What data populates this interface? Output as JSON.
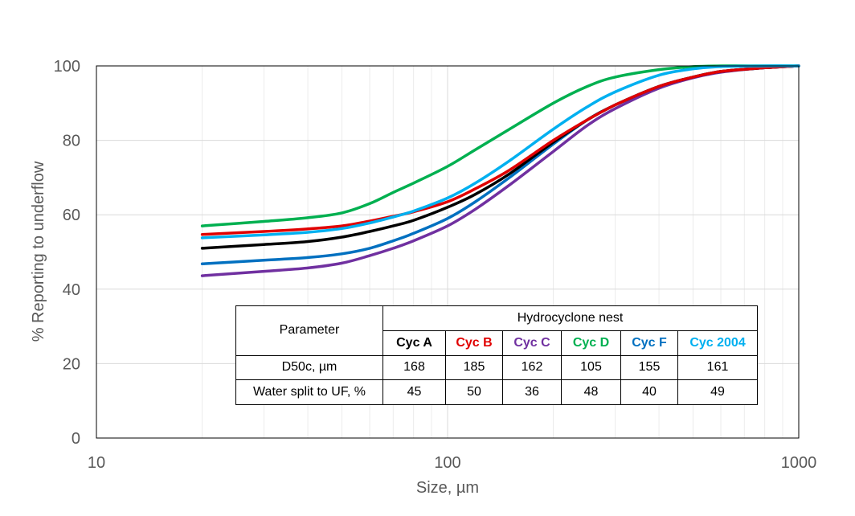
{
  "chart_data": {
    "type": "line",
    "xlabel": "Size, µm",
    "ylabel": "% Reporting to underflow",
    "x_scale": "log",
    "xlim": [
      10,
      1000
    ],
    "ylim": [
      0,
      100
    ],
    "x_ticks": [
      "10",
      "100",
      "1000"
    ],
    "y_ticks": [
      "0",
      "20",
      "40",
      "60",
      "80",
      "100"
    ],
    "grid": true,
    "series": [
      {
        "color": "#00b050",
        "x": [
          20,
          30,
          40,
          50,
          60,
          70,
          80,
          100,
          120,
          150,
          200,
          250,
          300,
          400,
          500,
          600,
          800,
          1000
        ],
        "values": [
          57,
          58.2,
          59.2,
          60.5,
          63,
          66,
          68.5,
          73,
          77.5,
          83,
          90,
          94.5,
          97,
          99,
          99.8,
          100,
          100,
          100
        ]
      },
      {
        "color": "#0070c0",
        "x": [
          20,
          30,
          40,
          50,
          60,
          70,
          80,
          100,
          120,
          150,
          200,
          250,
          300,
          400,
          500,
          600,
          800,
          1000
        ],
        "values": [
          46.8,
          47.8,
          48.5,
          49.5,
          51,
          53,
          55,
          59,
          63.5,
          70,
          79,
          85.5,
          89.5,
          94.5,
          97,
          98.5,
          99.5,
          100
        ]
      },
      {
        "color": "#7030a0",
        "x": [
          20,
          30,
          40,
          50,
          60,
          70,
          80,
          100,
          120,
          150,
          200,
          250,
          300,
          400,
          500,
          600,
          800,
          1000
        ],
        "values": [
          43.6,
          44.8,
          45.7,
          47,
          49,
          51,
          53,
          57,
          61.5,
          68,
          77,
          84,
          88.5,
          94,
          96.8,
          98.3,
          99.5,
          100
        ]
      },
      {
        "color": "#000000",
        "x": [
          20,
          30,
          40,
          50,
          60,
          70,
          80,
          100,
          120,
          150,
          200,
          250,
          300,
          400,
          500,
          600,
          800,
          1000
        ],
        "values": [
          51,
          52,
          52.8,
          54,
          55.5,
          57,
          58.5,
          62,
          65.5,
          71,
          79.5,
          85.5,
          89.5,
          94.5,
          97,
          98.5,
          99.5,
          100
        ]
      },
      {
        "color": "#e00000",
        "x": [
          20,
          30,
          40,
          50,
          60,
          70,
          80,
          100,
          120,
          150,
          200,
          250,
          300,
          400,
          500,
          600,
          800,
          1000
        ],
        "values": [
          54.7,
          55.5,
          56.2,
          57,
          58.3,
          59.6,
          60.8,
          63.5,
          67,
          72,
          80,
          85.5,
          89.5,
          94.5,
          97,
          98.5,
          99.5,
          100
        ]
      },
      {
        "color": "#00b0f0",
        "x": [
          20,
          30,
          40,
          50,
          60,
          70,
          80,
          100,
          120,
          150,
          200,
          250,
          300,
          400,
          500,
          600,
          800,
          1000
        ],
        "values": [
          53.8,
          54.6,
          55.3,
          56.3,
          57.8,
          59.4,
          61,
          64.5,
          68.5,
          74.5,
          83,
          89,
          93,
          97.5,
          99.2,
          99.8,
          100,
          100
        ]
      }
    ]
  },
  "table": {
    "parameter_header": "Parameter",
    "group_header": "Hydrocyclone nest",
    "columns": [
      {
        "label": "Cyc A",
        "color": "#000000"
      },
      {
        "label": "Cyc B",
        "color": "#e00000"
      },
      {
        "label": "Cyc C",
        "color": "#7030a0"
      },
      {
        "label": "Cyc D",
        "color": "#00b050"
      },
      {
        "label": "Cyc F",
        "color": "#0070c0"
      },
      {
        "label": "Cyc 2004",
        "color": "#00b0f0"
      }
    ],
    "rows": [
      {
        "label": "D50c, µm",
        "values": [
          "168",
          "185",
          "162",
          "105",
          "155",
          "161"
        ]
      },
      {
        "label": "Water split to UF, %",
        "values": [
          "45",
          "50",
          "36",
          "48",
          "40",
          "49"
        ]
      }
    ]
  }
}
